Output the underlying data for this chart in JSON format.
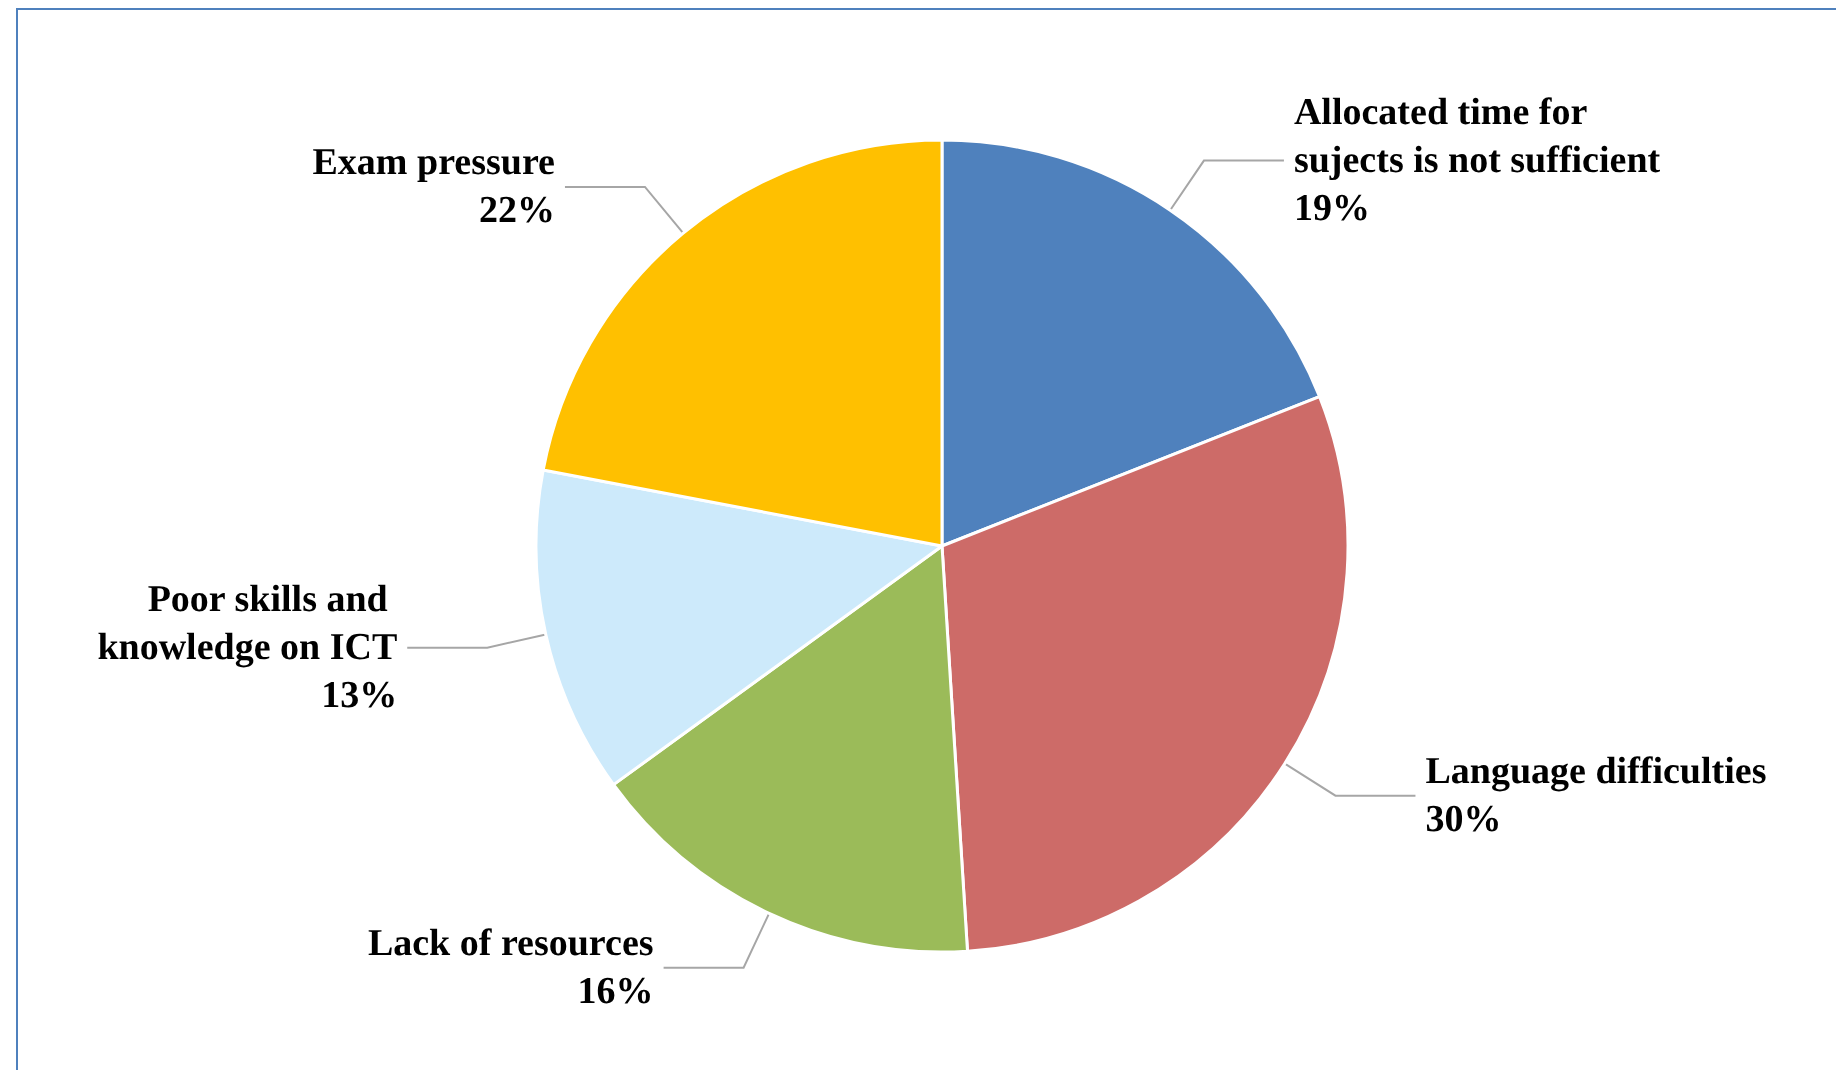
{
  "chart_data": {
    "type": "pie",
    "categories": [
      "Allocated time for sujects is not sufficient",
      "Language difficulties",
      "Lack of resources",
      "Poor skills and knowledge on ICT",
      "Exam pressure"
    ],
    "values": [
      19,
      30,
      16,
      13,
      22
    ],
    "value_labels": [
      "19%",
      "30%",
      "16%",
      "13%",
      "22%"
    ],
    "colors": [
      "#4f81bd",
      "#cd6b68",
      "#9bbb59",
      "#cdeafb",
      "#ffc000"
    ],
    "legend": false
  }
}
